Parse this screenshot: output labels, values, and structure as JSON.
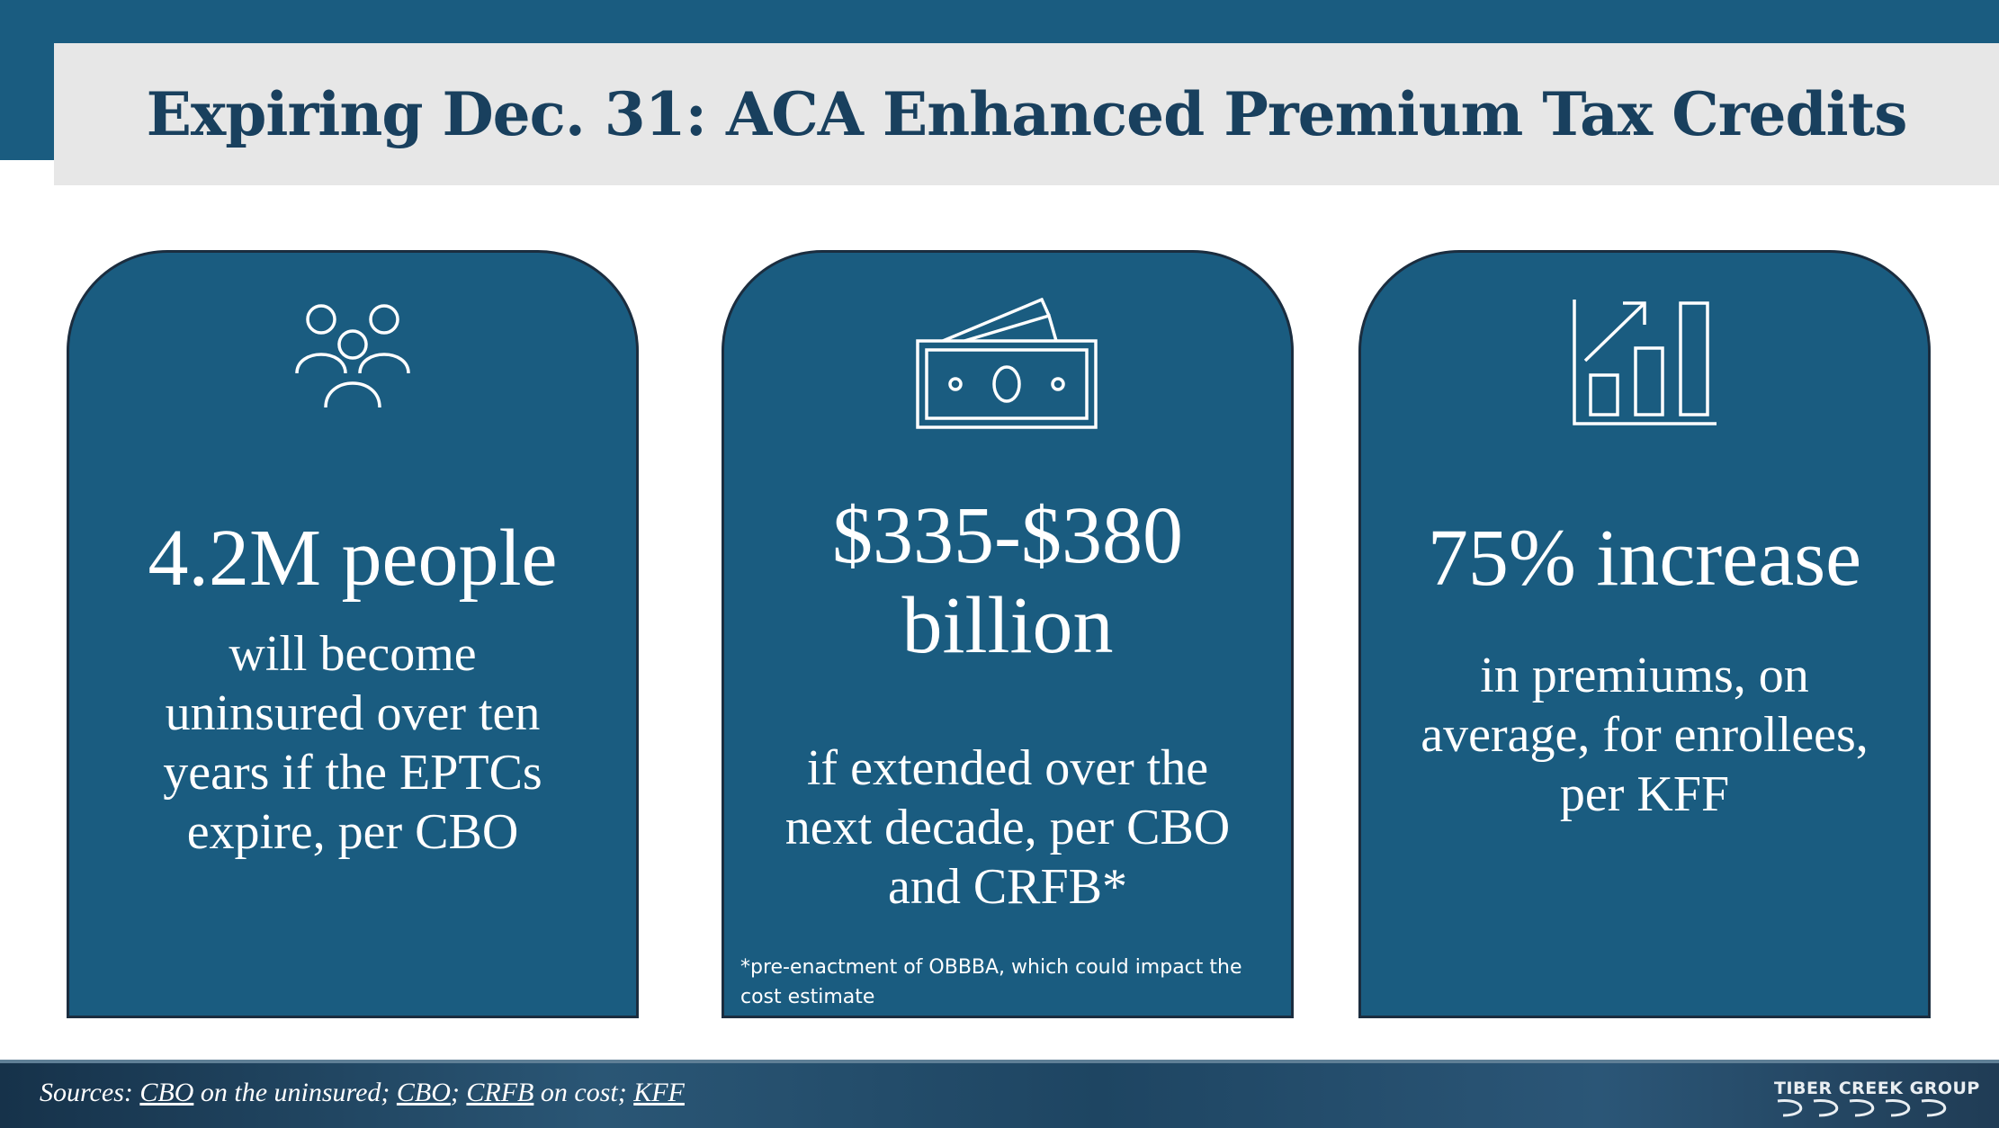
{
  "title": "Expiring Dec. 31: ACA Enhanced Premium Tax Credits",
  "cards": [
    {
      "icon": "people-group-icon",
      "headline": [
        "4.2M people"
      ],
      "body": [
        "will become",
        "uninsured over ten",
        "years if the EPTCs",
        "expire, per CBO"
      ]
    },
    {
      "icon": "money-bills-icon",
      "headline": [
        "$335-$380",
        "billion"
      ],
      "body": [
        "if extended over the",
        "next decade, per CBO",
        "and CRFB*"
      ],
      "footnote": [
        "*pre-enactment of OBBBA, which could impact the",
        "cost estimate"
      ]
    },
    {
      "icon": "bar-chart-growth-icon",
      "headline": [
        "75% increase"
      ],
      "body": [
        "in premiums, on",
        "average, for enrollees,",
        "per KFF"
      ]
    }
  ],
  "sources": {
    "prefix": "Sources: ",
    "link1": "CBO",
    "text1": " on the uninsured; ",
    "link2": "CBO",
    "sep1": "; ",
    "link3": "CRFB",
    "text2": " on cost; ",
    "link4": "KFF"
  },
  "logo": "TIBER CREEK GROUP",
  "colors": {
    "card": "#1a5c80",
    "title": "#19405e",
    "title_bg": "#e7e7e7"
  }
}
